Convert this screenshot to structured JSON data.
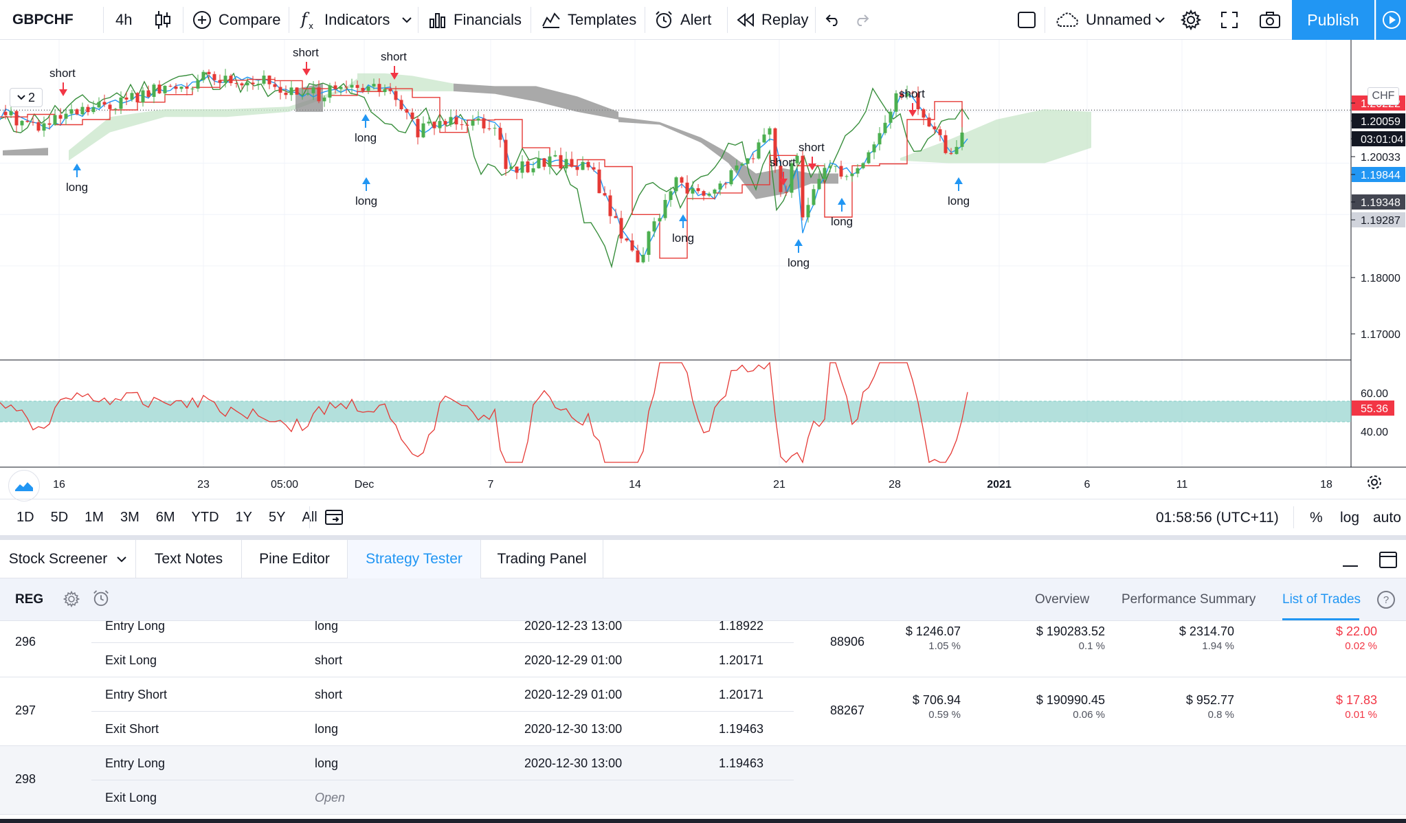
{
  "toolbar": {
    "symbol": "GBPCHF",
    "interval": "4h",
    "compare": "Compare",
    "indicators": "Indicators",
    "financials": "Financials",
    "templates": "Templates",
    "alert": "Alert",
    "replay": "Replay",
    "layout_name": "Unnamed",
    "publish": "Publish"
  },
  "chart": {
    "collapse_count": "2",
    "currency": "CHF",
    "signals": [
      "short",
      "long",
      "short",
      "long",
      "short",
      "long",
      "short",
      "long",
      "long",
      "short",
      "long",
      "short",
      "long",
      "long"
    ],
    "price_labels": [
      {
        "text": "1.20222",
        "bg": "#f23645"
      },
      {
        "text": "1.20059",
        "bg": "#131722"
      },
      {
        "text": "03:01:04",
        "bg": "#131722"
      },
      {
        "text": "1.20033",
        "bg": "#ffffff"
      },
      {
        "text": "1.19844",
        "bg": "#2196f3"
      },
      {
        "text": "1.19348",
        "bg": "#434651"
      },
      {
        "text": "1.19287",
        "bg": "#d1d4dc"
      }
    ],
    "price_ticks": [
      "1.18000",
      "1.17000"
    ],
    "osc_ticks": [
      "60.00",
      "40.00"
    ],
    "osc_value": "55.36",
    "x_ticks": [
      "16",
      "23",
      "05:00",
      "Dec",
      "7",
      "14",
      "21",
      "28",
      "2021",
      "6",
      "11",
      "18"
    ]
  },
  "range_bar": {
    "ranges": [
      "1D",
      "5D",
      "1M",
      "3M",
      "6M",
      "YTD",
      "1Y",
      "5Y",
      "All"
    ],
    "clock": "01:58:56 (UTC+11)",
    "percent": "%",
    "log": "log",
    "auto": "auto"
  },
  "panel_tabs": [
    "Stock Screener",
    "Text Notes",
    "Pine Editor",
    "Strategy Tester",
    "Trading Panel"
  ],
  "strategy": {
    "name": "REG",
    "tabs": [
      "Overview",
      "Performance Summary",
      "List of Trades"
    ],
    "help": "?"
  },
  "trades": [
    {
      "num": "296",
      "rows": [
        {
          "type": "Entry Long",
          "signal": "long",
          "date": "2020-12-23 13:00",
          "price": "1.18922"
        },
        {
          "type": "Exit Long",
          "signal": "short",
          "date": "2020-12-29 01:00",
          "price": "1.20171"
        }
      ],
      "contracts": "88906",
      "profit": "$ 1246.07",
      "profit_pct": "1.05 %",
      "cum": "$ 190283.52",
      "cum_pct": "0.1 %",
      "runup": "$ 2314.70",
      "runup_pct": "1.94 %",
      "drawdown": "$ 22.00",
      "drawdown_pct": "0.02 %"
    },
    {
      "num": "297",
      "rows": [
        {
          "type": "Entry Short",
          "signal": "short",
          "date": "2020-12-29 01:00",
          "price": "1.20171"
        },
        {
          "type": "Exit Short",
          "signal": "long",
          "date": "2020-12-30 13:00",
          "price": "1.19463"
        }
      ],
      "contracts": "88267",
      "profit": "$ 706.94",
      "profit_pct": "0.59 %",
      "cum": "$ 190990.45",
      "cum_pct": "0.06 %",
      "runup": "$ 952.77",
      "runup_pct": "0.8 %",
      "drawdown": "$ 17.83",
      "drawdown_pct": "0.01 %"
    },
    {
      "num": "298",
      "rows": [
        {
          "type": "Entry Long",
          "signal": "long",
          "date": "2020-12-30 13:00",
          "price": "1.19463"
        },
        {
          "type": "Exit Long",
          "signal": "Open",
          "date": "",
          "price": ""
        }
      ]
    }
  ]
}
